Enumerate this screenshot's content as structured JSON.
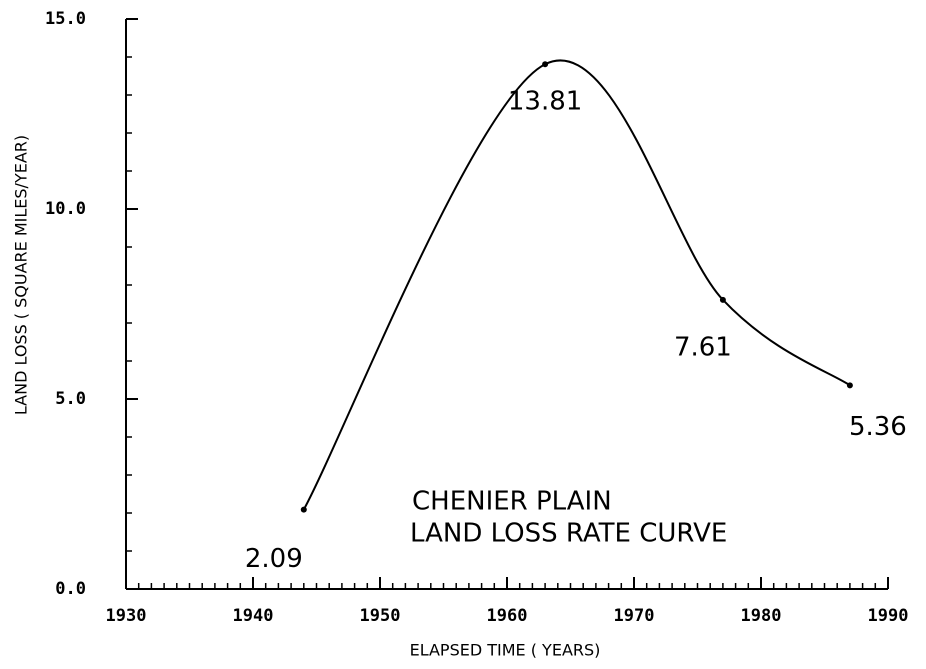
{
  "chart_data": {
    "type": "line",
    "x": [
      1944,
      1963,
      1977,
      1987
    ],
    "series": [
      {
        "name": null,
        "color": "#000000",
        "values": [
          2.09,
          13.81,
          7.61,
          5.36
        ]
      }
    ],
    "xlabel": "ELAPSED TIME ( YEARS)",
    "ylabel": "LAND LOSS ( SQUARE MILES/YEAR)",
    "annotations": [
      "CHENIER PLAIN",
      "LAND LOSS RATE CURVE"
    ],
    "xlim": [
      1930,
      1990
    ],
    "xticks": [
      1930,
      1940,
      1950,
      1960,
      1970,
      1980,
      1990
    ],
    "ylim": [
      0,
      15
    ],
    "yticks": [
      {
        "value": 0,
        "label": "0.0"
      },
      {
        "value": 5,
        "label": "5.0"
      },
      {
        "value": 10,
        "label": "10.0"
      },
      {
        "value": 15,
        "label": "15.0"
      }
    ],
    "xminor_step": 1,
    "yminor_step": 1
  }
}
